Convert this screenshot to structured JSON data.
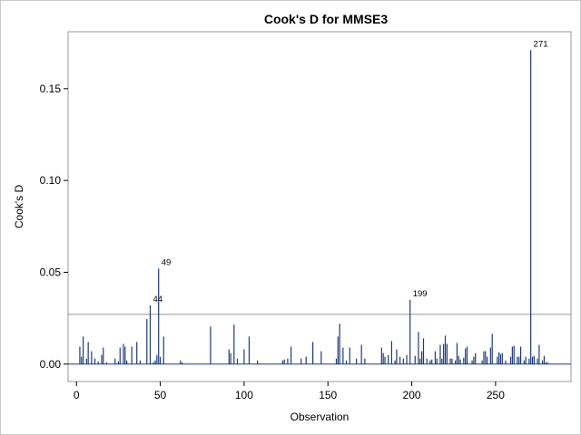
{
  "chart_data": {
    "type": "bar",
    "title": "Cook's D for MMSE3",
    "xlabel": "Observation",
    "ylabel": "Cook's D",
    "xlim": [
      -5,
      295
    ],
    "ylim": [
      -0.0095,
      0.181
    ],
    "xticks": [
      0,
      50,
      100,
      150,
      200,
      250
    ],
    "xtick_labels": [
      "0",
      "50",
      "100",
      "150",
      "200",
      "250"
    ],
    "yticks": [
      0.0,
      0.05,
      0.1,
      0.15
    ],
    "ytick_labels": [
      "0.00",
      "0.05",
      "0.10",
      "0.15"
    ],
    "threshold": 0.0271,
    "bar_color": "#1f3a7a",
    "line_color": "#999999",
    "grid": false,
    "observations": [
      2,
      3,
      4,
      6,
      7,
      9,
      11,
      13,
      15,
      16,
      18,
      23,
      25,
      26,
      28,
      29,
      30,
      33,
      36,
      38,
      42,
      44,
      46,
      47,
      48,
      49,
      50,
      52,
      62,
      63,
      80,
      91,
      92,
      94,
      96,
      100,
      103,
      108,
      123,
      124,
      126,
      128,
      134,
      137,
      141,
      146,
      155,
      156,
      157,
      159,
      161,
      163,
      167,
      170,
      172,
      182,
      183,
      184,
      186,
      188,
      190,
      191,
      193,
      195,
      197,
      199,
      202,
      204,
      205,
      206,
      207,
      209,
      211,
      212,
      214,
      215,
      217,
      218,
      219,
      220,
      221,
      223,
      224,
      226,
      227,
      228,
      229,
      231,
      232,
      233,
      236,
      237,
      238,
      242,
      243,
      244,
      245,
      247,
      248,
      251,
      252,
      253,
      254,
      256,
      259,
      260,
      261,
      263,
      264,
      265,
      267,
      268,
      270,
      271,
      272,
      273,
      275,
      276,
      278,
      279,
      280,
      281
    ],
    "values": [
      0.0095,
      0.004,
      0.015,
      0.003,
      0.012,
      0.007,
      0.003,
      0.0015,
      0.005,
      0.009,
      0.001,
      0.003,
      0.0015,
      0.009,
      0.011,
      0.0095,
      0.002,
      0.0095,
      0.012,
      0.002,
      0.0245,
      0.032,
      0.001,
      0.002,
      0.005,
      0.052,
      0.004,
      0.015,
      0.002,
      0.001,
      0.0205,
      0.008,
      0.006,
      0.0215,
      0.003,
      0.008,
      0.015,
      0.002,
      0.002,
      0.0025,
      0.003,
      0.0095,
      0.003,
      0.004,
      0.012,
      0.007,
      0.003,
      0.015,
      0.022,
      0.009,
      0.002,
      0.009,
      0.003,
      0.0105,
      0.003,
      0.009,
      0.006,
      0.004,
      0.005,
      0.0125,
      0.002,
      0.008,
      0.004,
      0.003,
      0.005,
      0.035,
      0.0045,
      0.0175,
      0.003,
      0.007,
      0.014,
      0.003,
      0.002,
      0.0025,
      0.007,
      0.003,
      0.0105,
      0.003,
      0.011,
      0.0155,
      0.011,
      0.003,
      0.003,
      0.002,
      0.0115,
      0.0045,
      0.0025,
      0.0035,
      0.0085,
      0.0095,
      0.002,
      0.004,
      0.006,
      0.002,
      0.007,
      0.007,
      0.004,
      0.009,
      0.0165,
      0.004,
      0.0065,
      0.0055,
      0.006,
      0.002,
      0.004,
      0.0095,
      0.01,
      0.004,
      0.004,
      0.0095,
      0.002,
      0.004,
      0.003,
      0.171,
      0.004,
      0.0045,
      0.003,
      0.0105,
      0.002,
      0.0045,
      0.001,
      0.001
    ],
    "annotations": [
      {
        "label": "44",
        "observation": 44,
        "value": 0.032
      },
      {
        "label": "49",
        "observation": 49,
        "value": 0.052
      },
      {
        "label": "199",
        "observation": 199,
        "value": 0.035
      },
      {
        "label": "271",
        "observation": 271,
        "value": 0.171
      }
    ]
  }
}
